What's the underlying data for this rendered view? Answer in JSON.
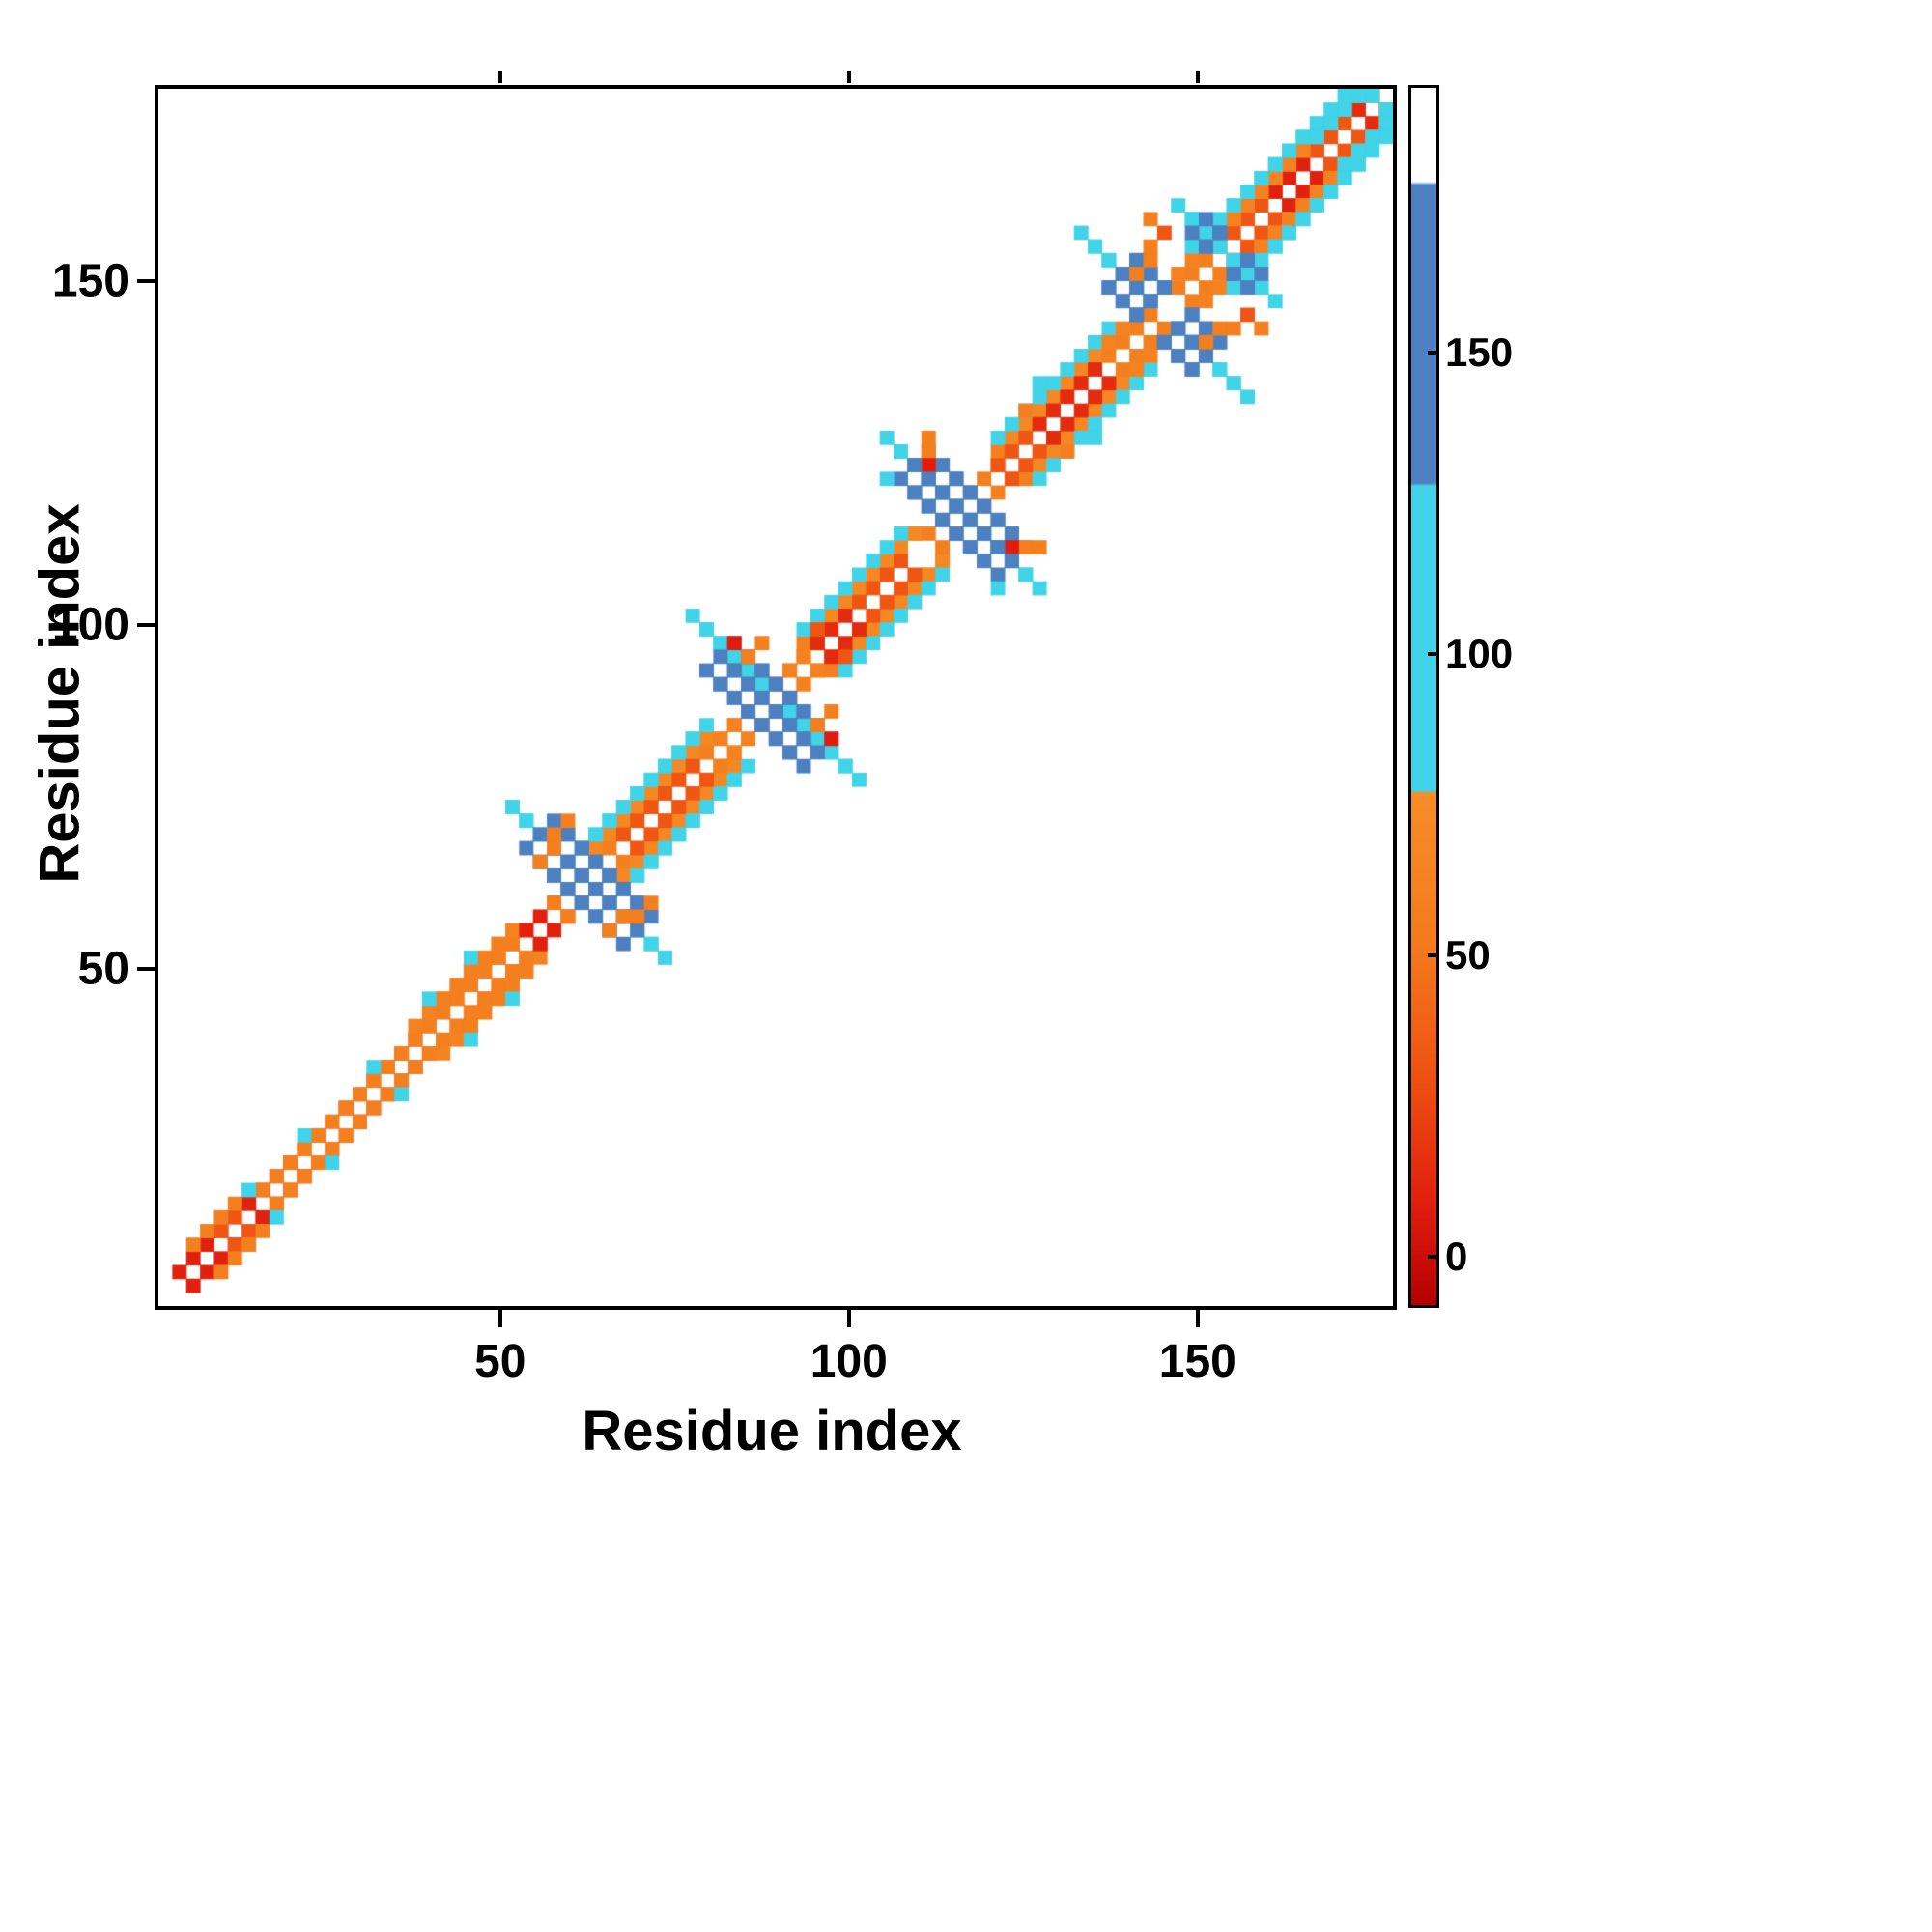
{
  "chart_data": {
    "type": "heatmap",
    "title": "",
    "xlabel": "Residue index",
    "ylabel": "Residue index",
    "x_range": [
      1,
      178
    ],
    "y_range": [
      1,
      178
    ],
    "x_ticks": [
      50,
      100,
      150
    ],
    "y_ticks": [
      50,
      100,
      150
    ],
    "grid": false,
    "background": "#ffffff",
    "cell_size_residues": 2,
    "symmetric": true,
    "colormap": {
      "stops": [
        {
          "v": -8,
          "c": "#b40000"
        },
        {
          "v": 8,
          "c": "#e01c0e"
        },
        {
          "v": 30,
          "c": "#ee5212"
        },
        {
          "v": 52,
          "c": "#f47a1d"
        },
        {
          "v": 77,
          "c": "#f68d26"
        },
        {
          "v": 77.5,
          "c": "#41d3e8"
        },
        {
          "v": 128,
          "c": "#41d3e8"
        },
        {
          "v": 128.5,
          "c": "#4c80c0"
        },
        {
          "v": 178,
          "c": "#4c80c0"
        },
        {
          "v": 178.5,
          "c": "#ffffff"
        },
        {
          "v": 194,
          "c": "#ffffff"
        }
      ]
    },
    "colorbar": {
      "orientation": "vertical",
      "position": "right",
      "range": [
        -8,
        194
      ],
      "ticks": [
        0,
        50,
        100,
        150
      ]
    },
    "features": {
      "diagonal_segments": [
        [
          2,
          8,
          2,
          10
        ],
        [
          8,
          12,
          2,
          32
        ],
        [
          12,
          18,
          2,
          10
        ],
        [
          18,
          26,
          2,
          32
        ],
        [
          26,
          34,
          2,
          14
        ],
        [
          5,
          12,
          3,
          58
        ],
        [
          14,
          22,
          3,
          58
        ],
        [
          24,
          33,
          3,
          58
        ],
        [
          34,
          52,
          2,
          32
        ],
        [
          34,
          51,
          3,
          58
        ],
        [
          36,
          50,
          4,
          62
        ],
        [
          40,
          48,
          5,
          58
        ],
        [
          52,
          57,
          2,
          10
        ],
        [
          56,
          62,
          2,
          58
        ],
        [
          62,
          79,
          3,
          58
        ],
        [
          63,
          79,
          4,
          70
        ],
        [
          61,
          78,
          6,
          100
        ],
        [
          62,
          79,
          7,
          100
        ],
        [
          66,
          76,
          2,
          32
        ],
        [
          79,
          86,
          2,
          58
        ],
        [
          80,
          86,
          3,
          62
        ],
        [
          88,
          94,
          2,
          58
        ],
        [
          88,
          94,
          3,
          62
        ],
        [
          93,
          109,
          3,
          58
        ],
        [
          94,
          109,
          4,
          70
        ],
        [
          93,
          108,
          6,
          100
        ],
        [
          95,
          100,
          2,
          14
        ],
        [
          101,
          108,
          2,
          32
        ],
        [
          110,
          115,
          2,
          58
        ],
        [
          117,
          122,
          2,
          58
        ],
        [
          121,
          137,
          3,
          58
        ],
        [
          122,
          137,
          4,
          70
        ],
        [
          120,
          136,
          6,
          100
        ],
        [
          126,
          134,
          2,
          14
        ],
        [
          121,
          126,
          2,
          32
        ],
        [
          137,
          143,
          2,
          58
        ],
        [
          137,
          142,
          3,
          62
        ],
        [
          146,
          152,
          2,
          58
        ],
        [
          147,
          153,
          3,
          62
        ],
        [
          152,
          160,
          2,
          32
        ],
        [
          160,
          166,
          2,
          10
        ],
        [
          166,
          172,
          2,
          32
        ],
        [
          172,
          177,
          2,
          14
        ],
        [
          151,
          176,
          3,
          58
        ],
        [
          154,
          170,
          4,
          62
        ],
        [
          149,
          174,
          5,
          100
        ],
        [
          155,
          168,
          6,
          100
        ],
        [
          166,
          175,
          4,
          100
        ]
      ],
      "antidiagonal_segments": [
        [
          61,
          62,
          11,
          1,
          100
        ],
        [
          87,
          89,
          11,
          1,
          100
        ],
        [
          115,
          117,
          10,
          1,
          100
        ],
        [
          144,
          145,
          11,
          1,
          100
        ],
        [
          152,
          154,
          6,
          1,
          100
        ],
        [
          61,
          62,
          6,
          3,
          150
        ],
        [
          87,
          89,
          6,
          3,
          150
        ],
        [
          115,
          117,
          6,
          3,
          150
        ],
        [
          144,
          145,
          6,
          3,
          150
        ],
        [
          152,
          154,
          3,
          2,
          150
        ]
      ],
      "points": [
        [
          12,
          16,
          100
        ],
        [
          21,
          25,
          100
        ],
        [
          30,
          34,
          100
        ],
        [
          38,
          44,
          100
        ],
        [
          44,
          50,
          100
        ],
        [
          57,
          69,
          58
        ],
        [
          58,
          71,
          58
        ],
        [
          55,
          65,
          58
        ],
        [
          56,
          67,
          58
        ],
        [
          83,
          96,
          8
        ],
        [
          84,
          94,
          58
        ],
        [
          86,
          96,
          58
        ],
        [
          95,
          99,
          32
        ],
        [
          104,
          121,
          100
        ],
        [
          110,
          124,
          58
        ],
        [
          111,
          126,
          58
        ],
        [
          111,
          122,
          8
        ],
        [
          110,
          121,
          150
        ],
        [
          109,
          123,
          150
        ],
        [
          124,
          131,
          58
        ],
        [
          127,
          135,
          100
        ],
        [
          142,
          158,
          58
        ],
        [
          141,
          151,
          58
        ],
        [
          142,
          153,
          58
        ],
        [
          143,
          155,
          58
        ],
        [
          145,
          156,
          32
        ]
      ]
    }
  }
}
